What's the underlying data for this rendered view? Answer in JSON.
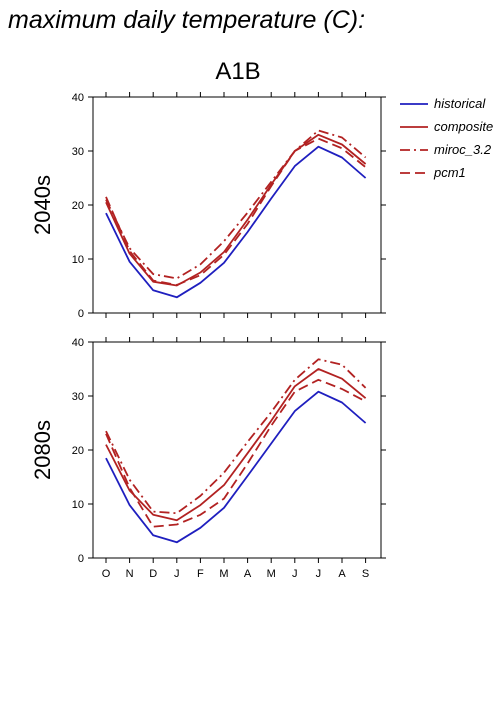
{
  "header": {
    "title": "maximum daily temperature (C):",
    "scenario": "A1B"
  },
  "legend": {
    "entries": [
      {
        "label": "historical",
        "color": "#1f1fbf",
        "dash": "solid"
      },
      {
        "label": "composite",
        "color": "#b22222",
        "dash": "solid"
      },
      {
        "label": "miroc_3.2",
        "color": "#b22222",
        "dash": "dashdot"
      },
      {
        "label": "pcm1",
        "color": "#b22222",
        "dash": "dash"
      }
    ]
  },
  "chart_data": [
    {
      "type": "line",
      "ylabel": "2040s",
      "ylim": [
        0,
        40
      ],
      "yticks": [
        0,
        10,
        20,
        30,
        40
      ],
      "categories": [
        "O",
        "N",
        "D",
        "J",
        "F",
        "M",
        "A",
        "M",
        "J",
        "J",
        "A",
        "S"
      ],
      "series": [
        {
          "name": "historical",
          "values": [
            18.5,
            9.5,
            4.2,
            2.9,
            5.6,
            9.3,
            15.0,
            21.2,
            27.2,
            30.8,
            28.8,
            25.0
          ]
        },
        {
          "name": "composite",
          "values": [
            20.5,
            11.0,
            5.8,
            5.1,
            7.5,
            11.3,
            17.3,
            23.8,
            30.0,
            33.0,
            31.2,
            27.6
          ]
        },
        {
          "name": "miroc_3.2",
          "values": [
            21.0,
            12.0,
            7.2,
            6.4,
            9.0,
            13.3,
            18.6,
            24.3,
            30.0,
            33.8,
            32.5,
            28.8
          ]
        },
        {
          "name": "pcm1",
          "values": [
            21.5,
            11.5,
            6.0,
            5.2,
            7.0,
            10.8,
            16.5,
            23.5,
            30.0,
            32.3,
            30.5,
            27.0
          ]
        }
      ]
    },
    {
      "type": "line",
      "ylabel": "2080s",
      "ylim": [
        0,
        40
      ],
      "yticks": [
        0,
        10,
        20,
        30,
        40
      ],
      "categories": [
        "O",
        "N",
        "D",
        "J",
        "F",
        "M",
        "A",
        "M",
        "J",
        "J",
        "A",
        "S"
      ],
      "series": [
        {
          "name": "historical",
          "values": [
            18.5,
            9.8,
            4.2,
            2.9,
            5.6,
            9.3,
            15.2,
            21.2,
            27.2,
            30.8,
            28.8,
            25.0
          ]
        },
        {
          "name": "composite",
          "values": [
            21.0,
            12.5,
            8.0,
            7.0,
            9.8,
            13.5,
            19.4,
            25.4,
            31.8,
            35.0,
            33.2,
            29.6
          ]
        },
        {
          "name": "miroc_3.2",
          "values": [
            23.5,
            14.5,
            8.6,
            8.3,
            11.5,
            15.8,
            21.5,
            27.0,
            33.0,
            36.8,
            35.8,
            31.5
          ]
        },
        {
          "name": "pcm1",
          "values": [
            23.0,
            13.0,
            5.8,
            6.2,
            8.0,
            11.0,
            17.5,
            24.5,
            30.8,
            33.0,
            31.3,
            29.0
          ]
        }
      ]
    }
  ]
}
